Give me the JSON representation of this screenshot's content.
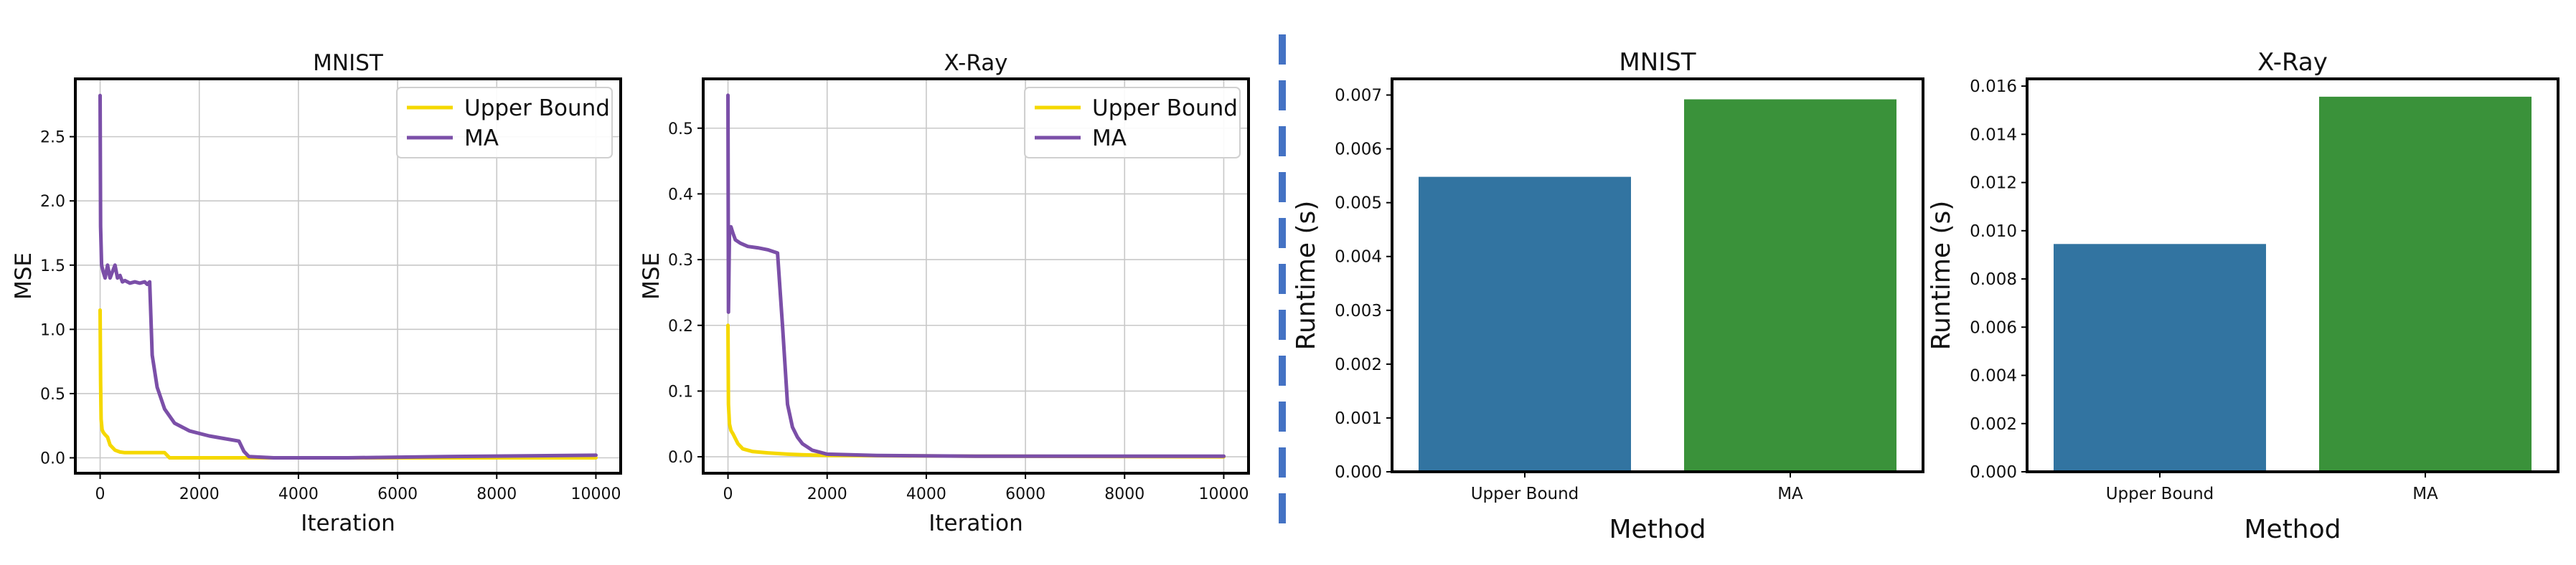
{
  "chart_data": [
    {
      "type": "line",
      "title": "MNIST",
      "xlabel": "Iteration",
      "ylabel": "MSE",
      "xlim": [
        -500,
        10500
      ],
      "ylim": [
        -0.12,
        2.95
      ],
      "xticks": [
        0,
        2000,
        4000,
        6000,
        8000,
        10000
      ],
      "xtick_labels": [
        "0",
        "2000",
        "4000",
        "6000",
        "8000",
        "10000"
      ],
      "yticks": [
        0.0,
        0.5,
        1.0,
        1.5,
        2.0,
        2.5
      ],
      "ytick_labels": [
        "0.0",
        "0.5",
        "1.0",
        "1.5",
        "2.0",
        "2.5"
      ],
      "grid": true,
      "legend_position": "top-right",
      "series": [
        {
          "name": "Upper Bound",
          "color": "#f5d800",
          "x": [
            0,
            10,
            20,
            40,
            60,
            100,
            150,
            200,
            300,
            400,
            500,
            700,
            1000,
            1300,
            1400,
            2000,
            3000,
            5000,
            8000,
            10000
          ],
          "y": [
            1.15,
            0.6,
            0.3,
            0.22,
            0.2,
            0.18,
            0.16,
            0.1,
            0.06,
            0.045,
            0.04,
            0.04,
            0.04,
            0.04,
            0.0,
            0.0,
            0.0,
            0.0,
            0.0,
            0.0
          ]
        },
        {
          "name": "MA",
          "color": "#7b4fa8",
          "x": [
            0,
            10,
            30,
            60,
            100,
            150,
            200,
            250,
            300,
            350,
            400,
            450,
            500,
            600,
            700,
            800,
            900,
            950,
            1000,
            1050,
            1150,
            1300,
            1500,
            1800,
            2200,
            2500,
            2800,
            2900,
            3000,
            3500,
            5000,
            7000,
            10000
          ],
          "y": [
            2.82,
            1.8,
            1.5,
            1.45,
            1.4,
            1.5,
            1.4,
            1.45,
            1.5,
            1.4,
            1.42,
            1.37,
            1.38,
            1.36,
            1.37,
            1.36,
            1.37,
            1.35,
            1.37,
            0.8,
            0.55,
            0.38,
            0.27,
            0.21,
            0.17,
            0.15,
            0.13,
            0.05,
            0.01,
            0.0,
            0.0,
            0.01,
            0.02
          ]
        }
      ]
    },
    {
      "type": "line",
      "title": "X-Ray",
      "xlabel": "Iteration",
      "ylabel": "MSE",
      "xlim": [
        -500,
        10500
      ],
      "ylim": [
        -0.025,
        0.575
      ],
      "xticks": [
        0,
        2000,
        4000,
        6000,
        8000,
        10000
      ],
      "xtick_labels": [
        "0",
        "2000",
        "4000",
        "6000",
        "8000",
        "10000"
      ],
      "yticks": [
        0.0,
        0.1,
        0.2,
        0.3,
        0.4,
        0.5
      ],
      "ytick_labels": [
        "0.0",
        "0.1",
        "0.2",
        "0.3",
        "0.4",
        "0.5"
      ],
      "grid": true,
      "legend_position": "top-right",
      "series": [
        {
          "name": "Upper Bound",
          "color": "#f5d800",
          "x": [
            0,
            10,
            30,
            60,
            100,
            200,
            300,
            500,
            800,
            1000,
            1200,
            1500,
            2000,
            5000,
            10000
          ],
          "y": [
            0.2,
            0.08,
            0.05,
            0.04,
            0.035,
            0.02,
            0.012,
            0.008,
            0.006,
            0.005,
            0.004,
            0.003,
            0.002,
            0.001,
            0.0
          ]
        },
        {
          "name": "MA",
          "color": "#7b4fa8",
          "x": [
            0,
            10,
            30,
            60,
            100,
            150,
            250,
            400,
            600,
            800,
            1000,
            1100,
            1200,
            1300,
            1400,
            1500,
            1700,
            2000,
            3000,
            5000,
            10000
          ],
          "y": [
            0.55,
            0.22,
            0.34,
            0.35,
            0.34,
            0.33,
            0.325,
            0.32,
            0.318,
            0.315,
            0.31,
            0.2,
            0.08,
            0.045,
            0.03,
            0.02,
            0.01,
            0.004,
            0.002,
            0.001,
            0.001
          ]
        }
      ]
    },
    {
      "type": "bar",
      "title": "MNIST",
      "xlabel": "Method",
      "ylabel": "Runtime (s)",
      "categories": [
        "Upper Bound",
        "MA"
      ],
      "values": [
        0.00548,
        0.00692
      ],
      "colors": [
        "#3274a1",
        "#3a923a"
      ],
      "ylim": [
        0,
        0.0073
      ],
      "yticks": [
        0.0,
        0.001,
        0.002,
        0.003,
        0.004,
        0.005,
        0.006,
        0.007
      ],
      "ytick_labels": [
        "0.000",
        "0.001",
        "0.002",
        "0.003",
        "0.004",
        "0.005",
        "0.006",
        "0.007"
      ],
      "grid": false
    },
    {
      "type": "bar",
      "title": "X-Ray",
      "xlabel": "Method",
      "ylabel": "Runtime (s)",
      "categories": [
        "Upper Bound",
        "MA"
      ],
      "values": [
        0.00945,
        0.01556
      ],
      "colors": [
        "#3274a1",
        "#3a923a"
      ],
      "ylim": [
        0,
        0.0163
      ],
      "yticks": [
        0.0,
        0.002,
        0.004,
        0.006,
        0.008,
        0.01,
        0.012,
        0.014,
        0.016
      ],
      "ytick_labels": [
        "0.000",
        "0.002",
        "0.004",
        "0.006",
        "0.008",
        "0.010",
        "0.012",
        "0.014",
        "0.016"
      ],
      "grid": false
    }
  ],
  "divider": {
    "color": "#4472c4"
  }
}
